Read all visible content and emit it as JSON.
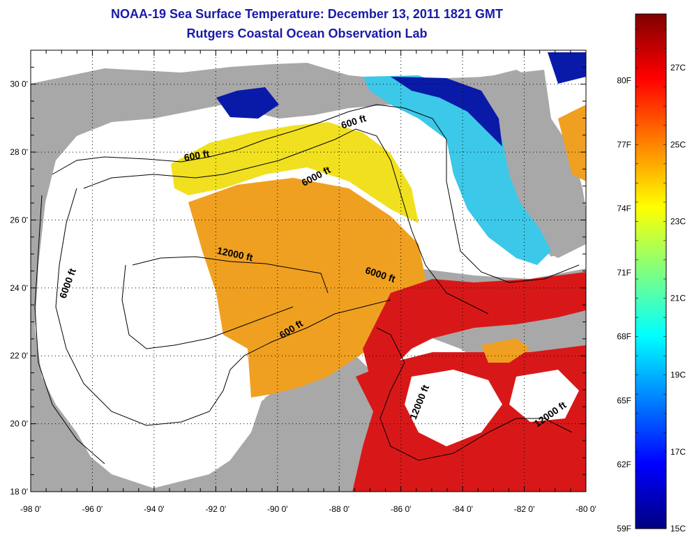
{
  "title": "NOAA-19 Sea Surface Temperature:  December 13, 2011 1821 GMT",
  "subtitle": "Rutgers Coastal Ocean Observation Lab",
  "map": {
    "lon_range": [
      -98,
      -80
    ],
    "lat_range": [
      18,
      31
    ],
    "lon_ticks": [
      {
        "value": -98,
        "label": "-98 0'"
      },
      {
        "value": -96,
        "label": "-96 0'"
      },
      {
        "value": -94,
        "label": "-94 0'"
      },
      {
        "value": -92,
        "label": "-92 0'"
      },
      {
        "value": -90,
        "label": "-90 0'"
      },
      {
        "value": -88,
        "label": "-88 0'"
      },
      {
        "value": -86,
        "label": "-86 0'"
      },
      {
        "value": -84,
        "label": "-84 0'"
      },
      {
        "value": -82,
        "label": "-82 0'"
      },
      {
        "value": -80,
        "label": "-80 0'"
      }
    ],
    "lat_ticks": [
      {
        "value": 18,
        "label": "18 0'"
      },
      {
        "value": 20,
        "label": "20 0'"
      },
      {
        "value": 22,
        "label": "22 0'"
      },
      {
        "value": 24,
        "label": "24 0'"
      },
      {
        "value": 26,
        "label": "26 0'"
      },
      {
        "value": 28,
        "label": "28 0'"
      },
      {
        "value": 30,
        "label": "30 0'"
      }
    ],
    "contour_labels": [
      {
        "text": "600 ft",
        "lon": -87.5,
        "lat": 28.8,
        "rot": -18
      },
      {
        "text": "600 ft",
        "lon": -92.6,
        "lat": 27.8,
        "rot": -10
      },
      {
        "text": "6000 ft",
        "lon": -88.7,
        "lat": 27.2,
        "rot": -28
      },
      {
        "text": "12000 ft",
        "lon": -91.4,
        "lat": 24.9,
        "rot": 12
      },
      {
        "text": "6000 ft",
        "lon": -96.7,
        "lat": 24.1,
        "rot": -70
      },
      {
        "text": "6000 ft",
        "lon": -86.7,
        "lat": 24.3,
        "rot": 18
      },
      {
        "text": "600 ft",
        "lon": -89.5,
        "lat": 22.7,
        "rot": -32
      },
      {
        "text": "12000 ft",
        "lon": -85.3,
        "lat": 20.6,
        "rot": -68
      },
      {
        "text": "12000 ft",
        "lon": -81.1,
        "lat": 20.2,
        "rot": -35
      }
    ],
    "colors": {
      "land": "#a8a8a8",
      "cloud": "#ffffff",
      "cold": "#0a1aa8",
      "cool": "#3cc8e8",
      "mid": "#f0e020",
      "warm": "#f0a020",
      "hot": "#d81818"
    }
  },
  "colorbar": {
    "colors": [
      "#000080",
      "#0000ff",
      "#0080ff",
      "#00ffff",
      "#80ff80",
      "#ffff00",
      "#ff8000",
      "#ff0000",
      "#800000"
    ],
    "f_labels": [
      {
        "label": "80F",
        "value": 80
      },
      {
        "label": "77F",
        "value": 77
      },
      {
        "label": "74F",
        "value": 74
      },
      {
        "label": "71F",
        "value": 71
      },
      {
        "label": "68F",
        "value": 68
      },
      {
        "label": "65F",
        "value": 65
      },
      {
        "label": "62F",
        "value": 62
      },
      {
        "label": "59F",
        "value": 59
      }
    ],
    "c_labels": [
      {
        "label": "27C",
        "value": 27
      },
      {
        "label": "25C",
        "value": 25
      },
      {
        "label": "23C",
        "value": 23
      },
      {
        "label": "21C",
        "value": 21
      },
      {
        "label": "19C",
        "value": 19
      },
      {
        "label": "17C",
        "value": 17
      },
      {
        "label": "15C",
        "value": 15
      }
    ]
  }
}
